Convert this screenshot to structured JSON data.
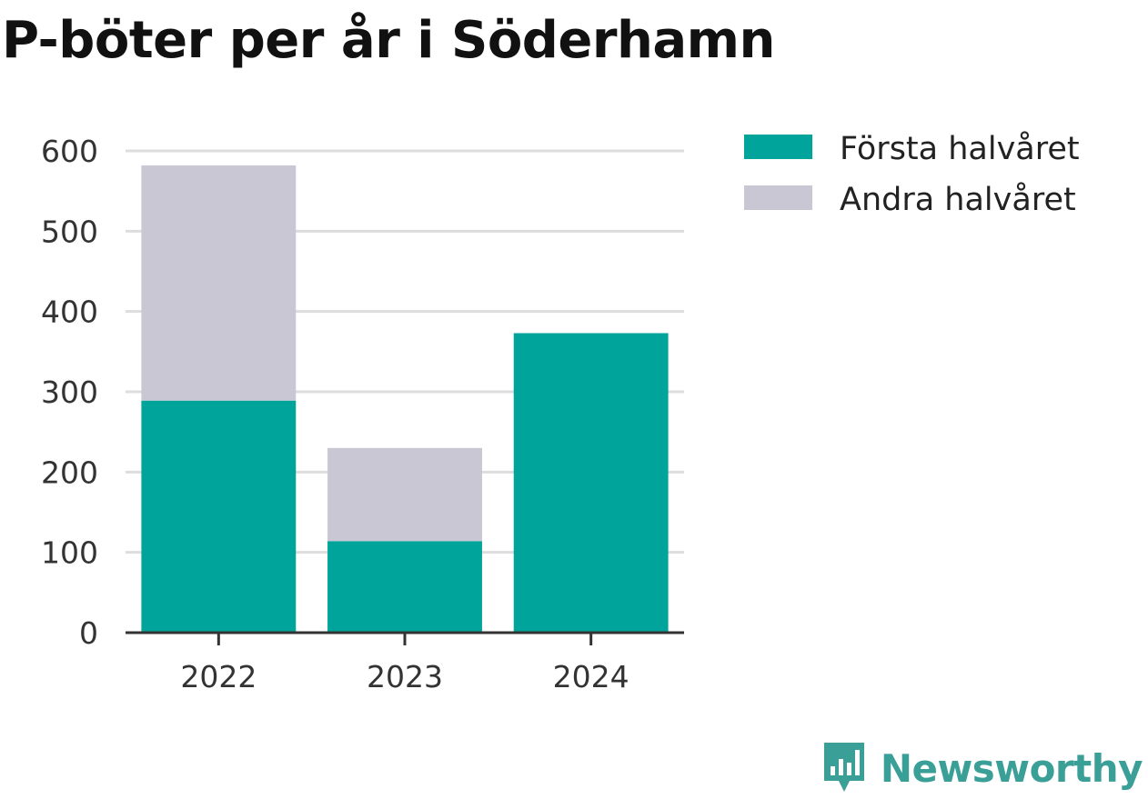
{
  "title": "P-böter per år i Söderhamn",
  "brand": {
    "name": "Newsworthy",
    "color": "#3a9f96"
  },
  "colors": {
    "first_half": "#00a49a",
    "second_half": "#c8c7d3",
    "grid": "#dddddd",
    "axis": "#333333"
  },
  "chart_data": {
    "type": "bar",
    "stacked": true,
    "title": "P-böter per år i Söderhamn",
    "xlabel": "",
    "ylabel": "",
    "categories": [
      "2022",
      "2023",
      "2024"
    ],
    "series": [
      {
        "name": "Första halvåret",
        "color": "#00a49a",
        "values": [
          289,
          114,
          373
        ]
      },
      {
        "name": "Andra halvåret",
        "color": "#c8c7d3",
        "values": [
          293,
          116,
          0
        ]
      }
    ],
    "ylim": [
      0,
      600
    ],
    "yticks": [
      0,
      100,
      200,
      300,
      400,
      500,
      600
    ],
    "grid": true,
    "legend_position": "top-right"
  }
}
